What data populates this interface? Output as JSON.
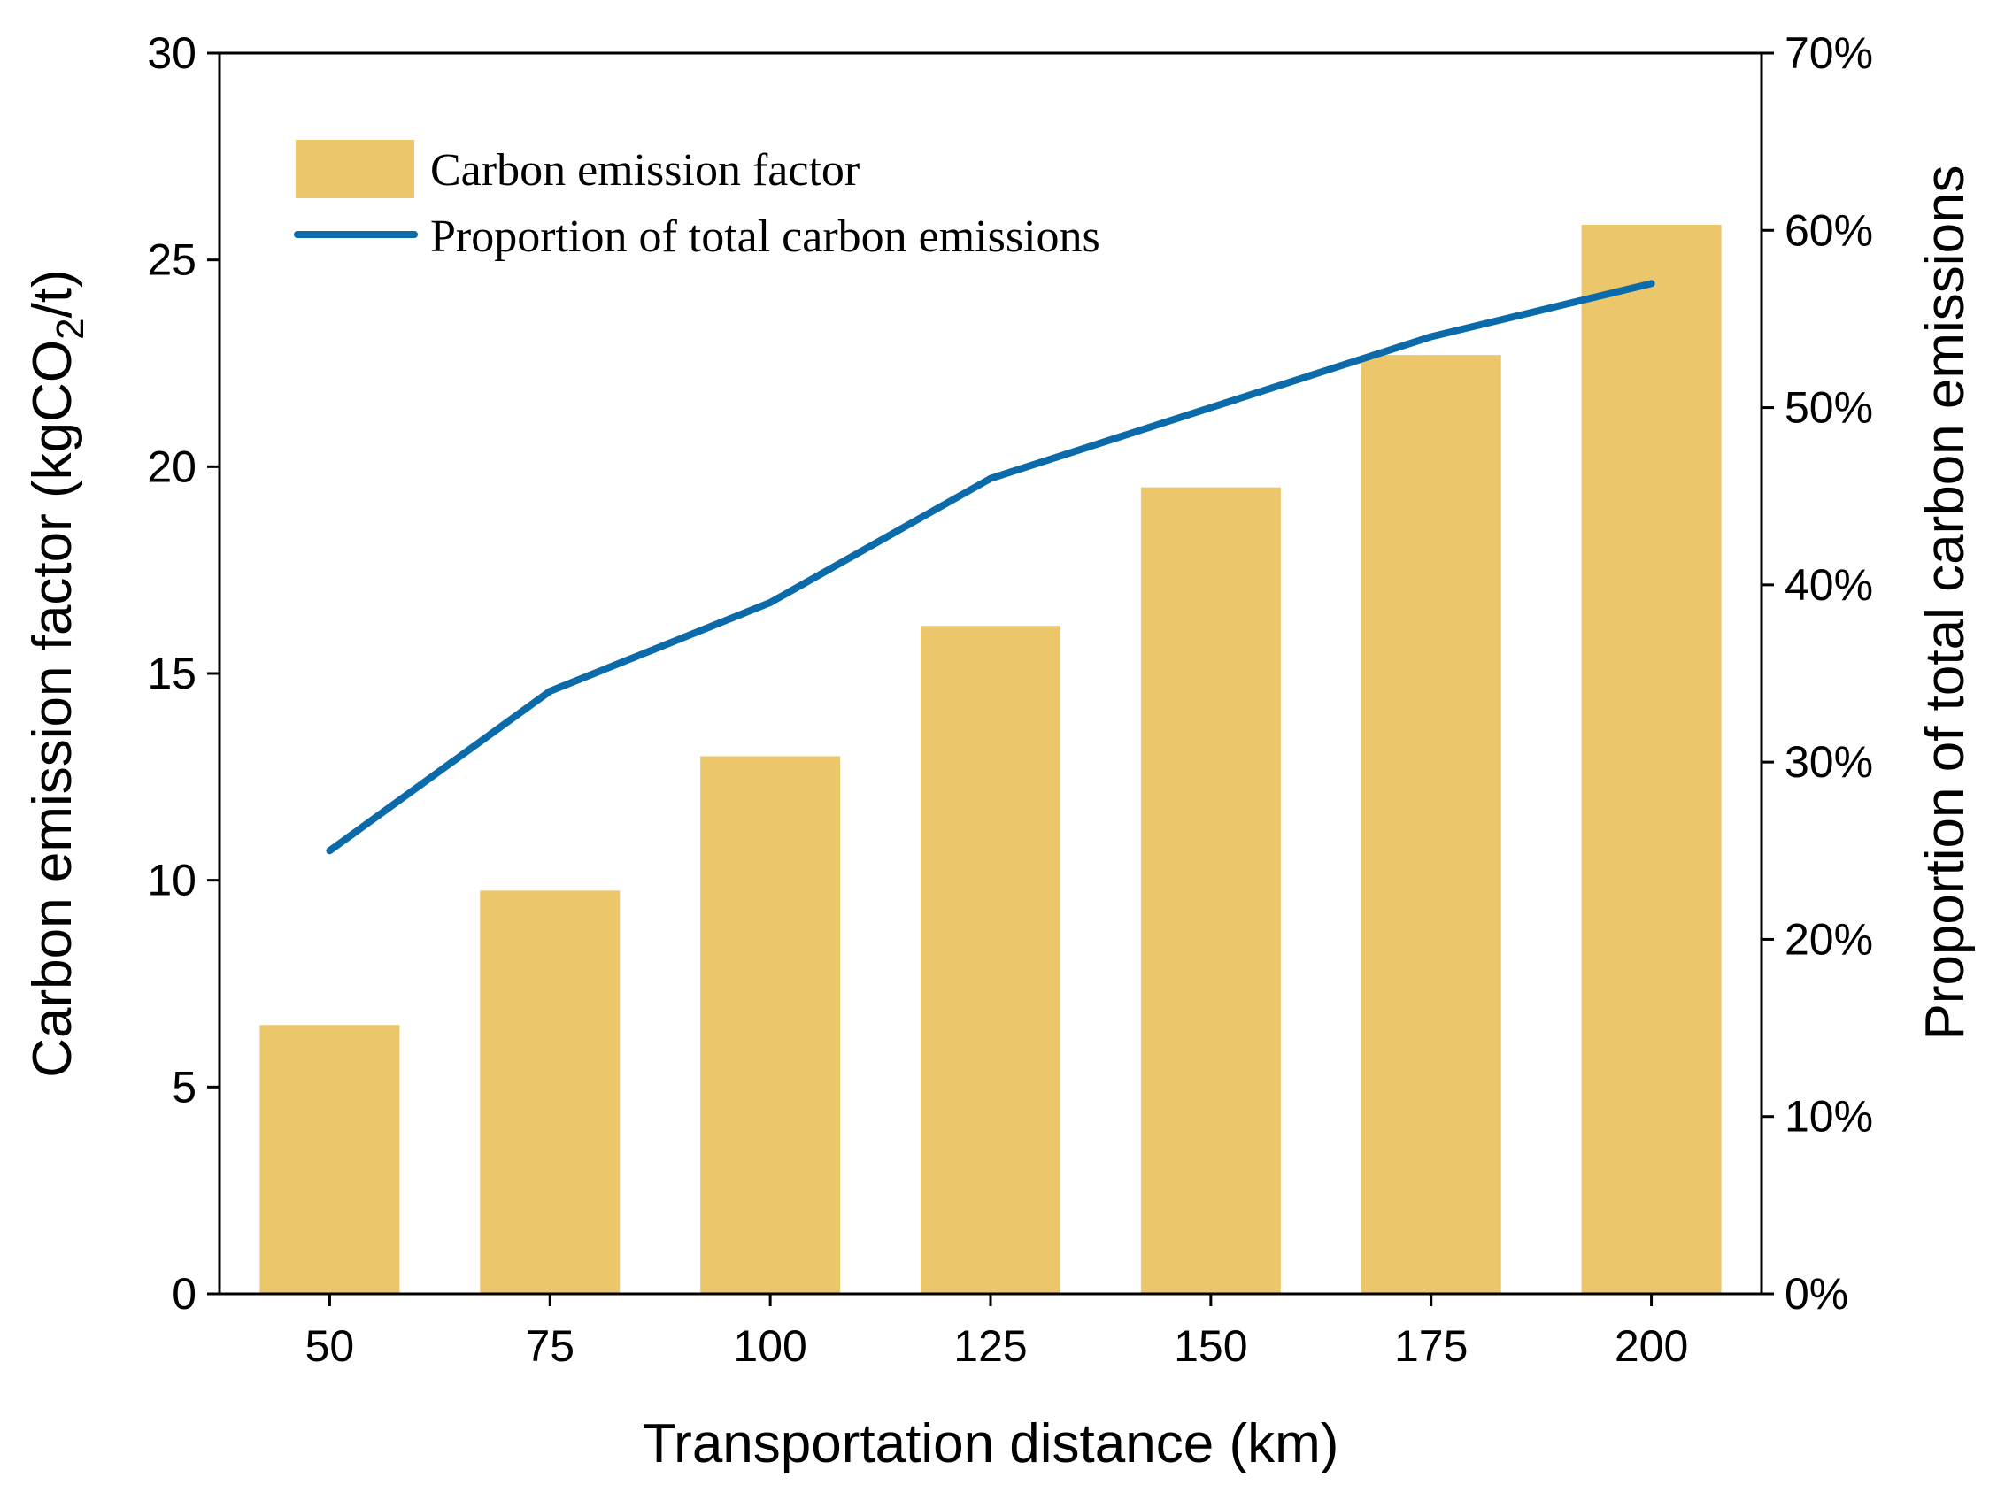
{
  "chart_data": {
    "type": "bar",
    "categories": [
      "50",
      "75",
      "100",
      "125",
      "150",
      "175",
      "200"
    ],
    "series": [
      {
        "name": "Carbon emission factor",
        "type": "bar",
        "axis": "left",
        "values": [
          6.5,
          9.75,
          13.0,
          16.15,
          19.5,
          22.7,
          25.85
        ],
        "color": "#ECC66A"
      },
      {
        "name": "Proportion of total carbon emissions",
        "type": "line",
        "axis": "right",
        "values": [
          25,
          34,
          39,
          46,
          50,
          54,
          57
        ],
        "color": "#0A6AAA"
      }
    ],
    "xlabel": "Transportation distance (km)",
    "ylabel_left": {
      "pre": "Carbon emission factor (kgCO",
      "sub": "2",
      "post": "/t)"
    },
    "ylabel_right": "Proportion of total carbon emissions",
    "ylim_left": [
      0,
      30
    ],
    "yticks_left": [
      "0",
      "5",
      "10",
      "15",
      "20",
      "25",
      "30"
    ],
    "ylim_right": [
      0,
      70
    ],
    "yticks_right": [
      "0%",
      "10%",
      "20%",
      "30%",
      "40%",
      "50%",
      "60%",
      "70%"
    ],
    "grid": false,
    "legend_position": "top-left"
  }
}
